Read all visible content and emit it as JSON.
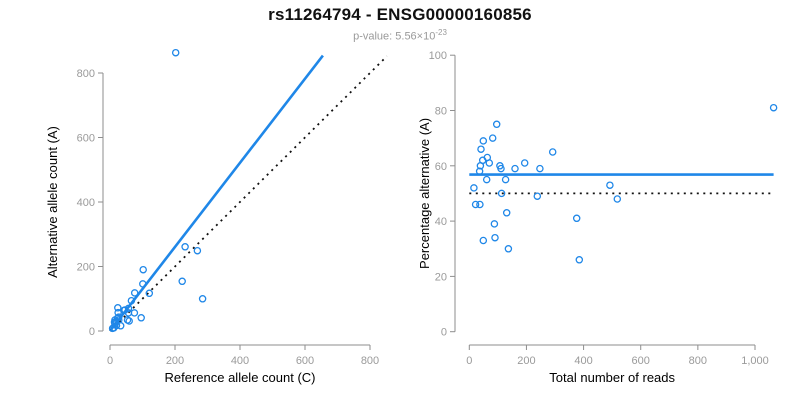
{
  "header": {
    "title": "rs11264794 - ENSG00000160856",
    "subtitle_base": "p-value: 5.56×10",
    "subtitle_exponent": "-23"
  },
  "colors": {
    "accent_blue": "#1f87e8",
    "axis_gray": "#8e8e8e",
    "tick_label_gray": "#9a9a9a",
    "reference_black": "#111111",
    "background": "#ffffff"
  },
  "chart_data": [
    {
      "name": "alt-vs-ref-scatter",
      "type": "scatter",
      "xlabel": "Reference allele count (C)",
      "ylabel": "Alternative allele count (A)",
      "xlim": [
        0,
        800
      ],
      "ylim": [
        0,
        800
      ],
      "grid": false,
      "legend": false,
      "xticks": [
        0,
        200,
        400,
        600,
        800
      ],
      "xtick_labels": [
        "0",
        "200",
        "400",
        "600",
        "800"
      ],
      "yticks": [
        0,
        200,
        400,
        600,
        800
      ],
      "ytick_labels": [
        "0",
        "200",
        "400",
        "600",
        "800"
      ],
      "points": [
        [
          202,
          863
        ],
        [
          24,
          72
        ],
        [
          25,
          57
        ],
        [
          15,
          34
        ],
        [
          14,
          27
        ],
        [
          102,
          190
        ],
        [
          23,
          40
        ],
        [
          18,
          29
        ],
        [
          27,
          43
        ],
        [
          76,
          118
        ],
        [
          43,
          64
        ],
        [
          16,
          23
        ],
        [
          46,
          65
        ],
        [
          66,
          94
        ],
        [
          101,
          146
        ],
        [
          15,
          21
        ],
        [
          27,
          34
        ],
        [
          57,
          70
        ],
        [
          231,
          261
        ],
        [
          8,
          8
        ],
        [
          57,
          56
        ],
        [
          121,
          117
        ],
        [
          269,
          249
        ],
        [
          12,
          10
        ],
        [
          20,
          17
        ],
        [
          75,
          56
        ],
        [
          222,
          154
        ],
        [
          54,
          34
        ],
        [
          59,
          31
        ],
        [
          33,
          16
        ],
        [
          96,
          41
        ],
        [
          285,
          100
        ]
      ],
      "lines": [
        {
          "name": "fit-line",
          "style": "solid",
          "from": [
            0,
            0
          ],
          "to": [
            655,
            854
          ]
        },
        {
          "name": "identity-line",
          "style": "dotted",
          "from": [
            0,
            0
          ],
          "to": [
            852,
            852
          ]
        }
      ]
    },
    {
      "name": "pct-vs-reads-scatter",
      "type": "scatter",
      "xlabel": "Total number of reads",
      "ylabel": "Percentage alternative (A)",
      "xlim": [
        0,
        1000
      ],
      "ylim": [
        0,
        100
      ],
      "grid": false,
      "legend": false,
      "xticks": [
        0,
        200,
        400,
        600,
        800,
        1000
      ],
      "xtick_labels": [
        "0",
        "200",
        "400",
        "600",
        "800",
        "1,000"
      ],
      "yticks": [
        0,
        20,
        40,
        60,
        80,
        100
      ],
      "ytick_labels": [
        "0",
        "20",
        "40",
        "60",
        "80",
        "100"
      ],
      "points": [
        [
          1065,
          81
        ],
        [
          96,
          75
        ],
        [
          82,
          70
        ],
        [
          49,
          69
        ],
        [
          41,
          66
        ],
        [
          292,
          65
        ],
        [
          63,
          63
        ],
        [
          47,
          62
        ],
        [
          70,
          61
        ],
        [
          194,
          61
        ],
        [
          107,
          60
        ],
        [
          39,
          60
        ],
        [
          111,
          59
        ],
        [
          160,
          59
        ],
        [
          247,
          59
        ],
        [
          36,
          58
        ],
        [
          61,
          55
        ],
        [
          127,
          55
        ],
        [
          492,
          53
        ],
        [
          16,
          52
        ],
        [
          113,
          50
        ],
        [
          238,
          49
        ],
        [
          518,
          48
        ],
        [
          22,
          46
        ],
        [
          37,
          46
        ],
        [
          131,
          43
        ],
        [
          376,
          41
        ],
        [
          88,
          39
        ],
        [
          90,
          34
        ],
        [
          49,
          33
        ],
        [
          137,
          30
        ],
        [
          385,
          26
        ]
      ],
      "lines": [
        {
          "name": "mean-percentage-line",
          "style": "solid",
          "from": [
            0,
            56.8
          ],
          "to": [
            1065,
            56.8
          ]
        },
        {
          "name": "fifty-percent-line",
          "style": "dotted",
          "from": [
            0,
            50
          ],
          "to": [
            1065,
            50
          ]
        }
      ]
    }
  ]
}
